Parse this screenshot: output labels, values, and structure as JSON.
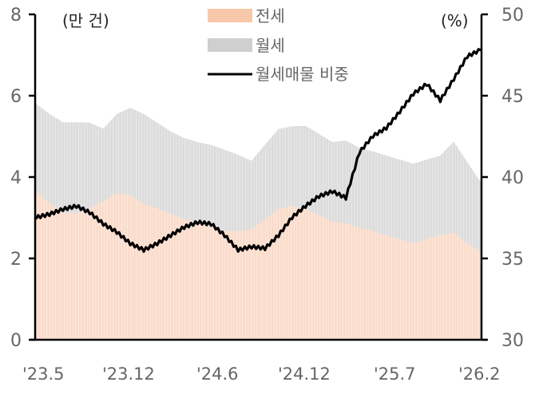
{
  "chart_data": {
    "type": "area+line",
    "title": "",
    "left_axis": {
      "unit_label": "(만 건)",
      "ticks": [
        "0",
        "2",
        "4",
        "6",
        "8"
      ],
      "range": [
        0,
        8
      ]
    },
    "right_axis": {
      "unit_label": "(%)",
      "ticks": [
        "30",
        "35",
        "40",
        "45",
        "50"
      ],
      "range": [
        30,
        50
      ]
    },
    "x_ticks": [
      "'23.5",
      "'23.12",
      "'24.6",
      "'24.12",
      "'25.7",
      "'26.2"
    ],
    "legend": [
      {
        "name": "전세",
        "type": "area",
        "color": "#f7c9aa"
      },
      {
        "name": "월세",
        "type": "area",
        "color": "#d3d3d3"
      },
      {
        "name": "월세매물 비중",
        "type": "line",
        "color": "#000000"
      }
    ],
    "series": [
      {
        "name": "전세",
        "axis": "left",
        "stack": true,
        "values": [
          3.65,
          3.35,
          3.15,
          3.1,
          3.22,
          3.41,
          3.61,
          3.55,
          3.35,
          3.22,
          3.1,
          2.96,
          2.86,
          2.76,
          2.67,
          2.67,
          2.71,
          2.96,
          3.22,
          3.29,
          3.22,
          3.06,
          2.9,
          2.86,
          2.76,
          2.67,
          2.57,
          2.47,
          2.37,
          2.47,
          2.57,
          2.63,
          2.37,
          2.18
        ]
      },
      {
        "name": "월세",
        "axis": "left",
        "stack": true,
        "values": [
          2.16,
          2.2,
          2.2,
          2.25,
          2.12,
          1.78,
          1.94,
          2.15,
          2.2,
          2.12,
          2.02,
          2.0,
          2.0,
          2.03,
          2.0,
          1.88,
          1.69,
          1.84,
          1.96,
          1.96,
          2.04,
          2.0,
          1.96,
          2.04,
          1.96,
          1.96,
          1.96,
          1.96,
          1.96,
          1.96,
          1.96,
          2.24,
          2.0,
          1.7
        ]
      },
      {
        "name": "월세매물 비중",
        "axis": "right",
        "values": [
          37.5,
          37.7,
          38.0,
          38.2,
          37.8,
          37.1,
          36.6,
          35.9,
          35.5,
          35.9,
          36.4,
          36.9,
          37.2,
          37.1,
          36.4,
          35.5,
          35.7,
          35.6,
          36.4,
          37.5,
          38.2,
          38.8,
          39.1,
          38.7,
          41.5,
          42.5,
          43.0,
          44.0,
          45.1,
          45.7,
          44.7,
          46.0,
          47.4,
          47.8
        ]
      }
    ],
    "n_points": 34,
    "grid": false,
    "legend_position": "top-center"
  },
  "legend": {
    "jeonse": "전세",
    "wolse": "월세",
    "ratio": "월세매물 비중"
  },
  "axes": {
    "left_unit": "(만 건)",
    "right_unit": "(%)",
    "left_ticks": [
      "0",
      "2",
      "4",
      "6",
      "8"
    ],
    "right_ticks": [
      "30",
      "35",
      "40",
      "45",
      "50"
    ],
    "x_ticks": [
      "'23.5",
      "'23.12",
      "'24.6",
      "'24.12",
      "'25.7",
      "'26.2"
    ]
  },
  "colors": {
    "jeonse": "#f7c9aa",
    "jeonse_fill": "#fadccb",
    "wolse": "#d3d3d3",
    "wolse_fill": "#dcdcdc",
    "line": "#000000",
    "text": "#666666"
  }
}
